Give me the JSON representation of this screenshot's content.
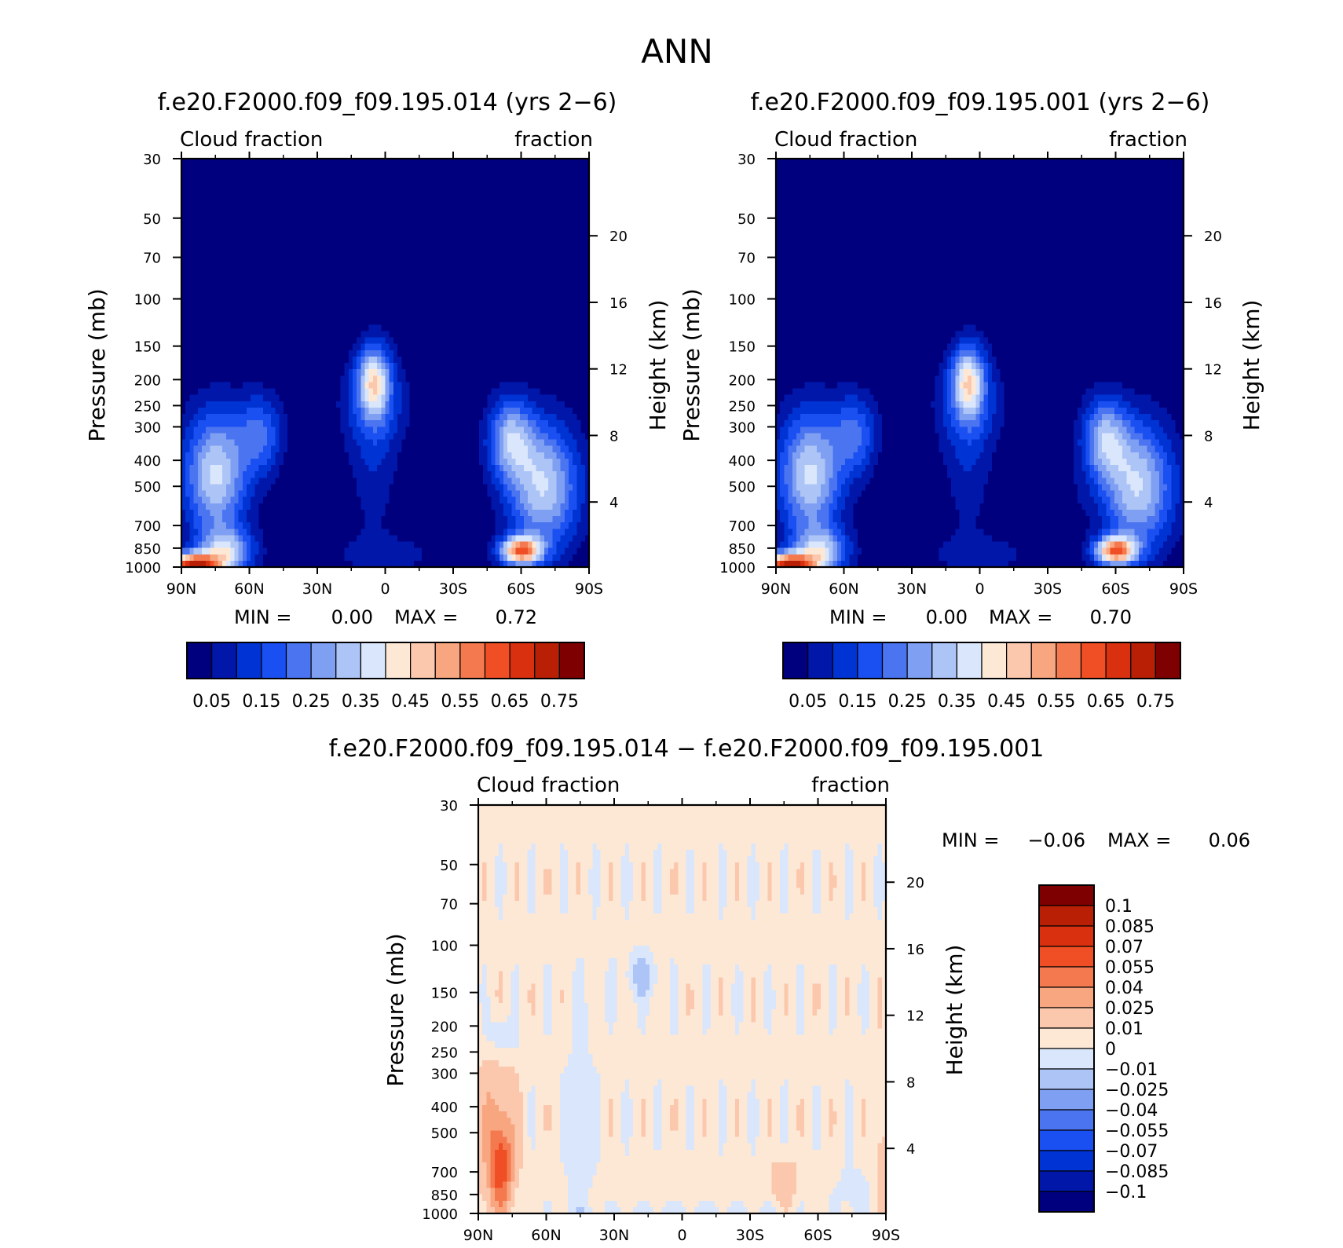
{
  "figure": {
    "title": "ANN",
    "colors": {
      "abs_scale": [
        "#00007f",
        "#0017aa",
        "#0033d4",
        "#1a4ff2",
        "#4a74f0",
        "#7f9ff2",
        "#adc4f7",
        "#d9e6fb",
        "#fde8d6",
        "#fbc8ae",
        "#f8a680",
        "#f5794f",
        "#f04e24",
        "#d93010",
        "#b81f05",
        "#7e0000"
      ],
      "diff_scale": [
        "#00007f",
        "#0017aa",
        "#0033d4",
        "#1a4ff2",
        "#4a74f0",
        "#7f9ff2",
        "#adc4f7",
        "#d9e6fb",
        "#fde8d6",
        "#fbc8ae",
        "#f8a680",
        "#f5794f",
        "#f04e24",
        "#d93010",
        "#b81f05",
        "#7e0000"
      ]
    }
  },
  "chart_data": [
    {
      "type": "heatmap",
      "title": "f.e20.F2000.f09_f09.195.014 (yrs 2−6)",
      "left_string": "Cloud  fraction",
      "right_string": "fraction",
      "xlabel": "",
      "ylabel": "Pressure (mb)",
      "y2label": "Height (km)",
      "x_ticks": [
        "90N",
        "60N",
        "30N",
        "0",
        "30S",
        "60S",
        "90S"
      ],
      "y_ticks": [
        "30",
        "50",
        "70",
        "100",
        "150",
        "200",
        "250",
        "300",
        "400",
        "500",
        "700",
        "850",
        "1000"
      ],
      "y2_ticks": [
        "20",
        "16",
        "12",
        "8",
        "4"
      ],
      "ylim": [
        1000,
        30
      ],
      "min_label": "MIN  =",
      "min_value": "0.00",
      "max_label": "MAX  =",
      "max_value": "0.72",
      "colorbar_labels": [
        "0.05",
        "0.15",
        "0.25",
        "0.35",
        "0.45",
        "0.55",
        "0.65",
        "0.75"
      ]
    },
    {
      "type": "heatmap",
      "title": "f.e20.F2000.f09_f09.195.001 (yrs 2−6)",
      "left_string": "Cloud  fraction",
      "right_string": "fraction",
      "xlabel": "",
      "ylabel": "Pressure (mb)",
      "y2label": "Height (km)",
      "x_ticks": [
        "90N",
        "60N",
        "30N",
        "0",
        "30S",
        "60S",
        "90S"
      ],
      "y_ticks": [
        "30",
        "50",
        "70",
        "100",
        "150",
        "200",
        "250",
        "300",
        "400",
        "500",
        "700",
        "850",
        "1000"
      ],
      "y2_ticks": [
        "20",
        "16",
        "12",
        "8",
        "4"
      ],
      "ylim": [
        1000,
        30
      ],
      "min_label": "MIN  =",
      "min_value": "0.00",
      "max_label": "MAX  =",
      "max_value": "0.70",
      "colorbar_labels": [
        "0.05",
        "0.15",
        "0.25",
        "0.35",
        "0.45",
        "0.55",
        "0.65",
        "0.75"
      ]
    },
    {
      "type": "heatmap",
      "title": "f.e20.F2000.f09_f09.195.014 − f.e20.F2000.f09_f09.195.001",
      "left_string": "Cloud  fraction",
      "right_string": "fraction",
      "xlabel": "",
      "ylabel": "Pressure (mb)",
      "y2label": "Height (km)",
      "x_ticks": [
        "90N",
        "60N",
        "30N",
        "0",
        "30S",
        "60S",
        "90S"
      ],
      "y_ticks": [
        "30",
        "50",
        "70",
        "100",
        "150",
        "200",
        "250",
        "300",
        "400",
        "500",
        "700",
        "850",
        "1000"
      ],
      "y2_ticks": [
        "20",
        "16",
        "12",
        "8",
        "4"
      ],
      "ylim": [
        1000,
        30
      ],
      "min_label": "MIN  =",
      "min_value": "−0.06",
      "max_label": "MAX  =",
      "max_value": "0.06",
      "colorbar_labels": [
        "0.1",
        "0.085",
        "0.07",
        "0.055",
        "0.04",
        "0.025",
        "0.01",
        "0",
        "−0.01",
        "−0.025",
        "−0.04",
        "−0.055",
        "−0.07",
        "−0.085",
        "−0.1"
      ]
    }
  ]
}
